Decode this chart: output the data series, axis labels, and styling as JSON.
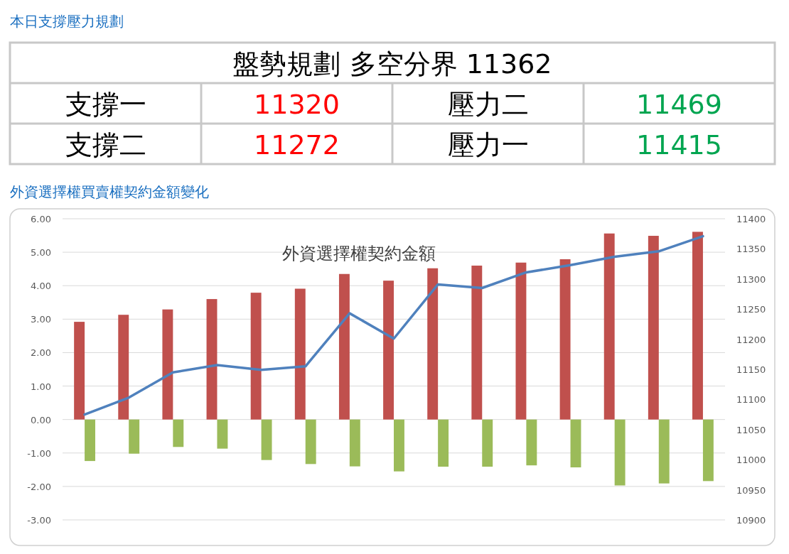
{
  "chart_data": [
    {
      "type": "other",
      "title": "本日支撐壓力規劃",
      "annotations": [
        "盤勢規劃 多空分界 11362",
        "支撐一",
        "11320",
        "壓力二",
        "11469",
        "支撐二",
        "11272",
        "壓力一",
        "11415"
      ],
      "colors": [
        "#000000",
        "#000000",
        "#ff0000",
        "#000000",
        "#00a550",
        "#000000",
        "#ff0000",
        "#000000",
        "#00a550"
      ]
    },
    {
      "type": "bar",
      "title": "外資選擇權買賣權契約金額變化",
      "subtitle": "外資選擇權契約金額",
      "categories": [
        null,
        null,
        null,
        null,
        null,
        null,
        null,
        null,
        null,
        null,
        null,
        null,
        null,
        null,
        null
      ],
      "series": [
        {
          "color": "#c0504d",
          "values": [
            2.92,
            3.13,
            3.29,
            3.6,
            3.79,
            3.91,
            4.35,
            4.15,
            4.52,
            4.6,
            4.69,
            4.79,
            5.56,
            5.49,
            5.61
          ]
        },
        {
          "color": "#9bbb59",
          "values": [
            -1.24,
            -1.02,
            -0.82,
            -0.87,
            -1.21,
            -1.33,
            -1.4,
            -1.55,
            -1.41,
            -1.41,
            -1.37,
            -1.43,
            -1.97,
            -1.91,
            -1.84
          ]
        },
        {
          "type": "line",
          "axis": "y2",
          "color": "#4f81bd",
          "marker": "none",
          "values": [
            11075,
            11103,
            11145,
            11157,
            11149,
            11155,
            11243,
            11201,
            11291,
            11285,
            11311,
            11323,
            11337,
            11346,
            11371
          ]
        }
      ],
      "ylim": [
        -3,
        6
      ],
      "yticks": [
        {
          "value": 6,
          "label": "6.00"
        },
        {
          "value": 5,
          "label": "5.00"
        },
        {
          "value": 4,
          "label": "4.00"
        },
        {
          "value": 3,
          "label": "3.00"
        },
        {
          "value": 2,
          "label": "2.00"
        },
        {
          "value": 1,
          "label": "1.00"
        },
        {
          "value": 0,
          "label": "0.00"
        },
        {
          "value": -1,
          "label": "-1.00"
        },
        {
          "value": -2,
          "label": "-2.00"
        },
        {
          "value": -3,
          "label": "-3.00"
        }
      ],
      "y2lim": [
        10900,
        11400
      ],
      "y2ticks": [
        11400,
        11350,
        11300,
        11250,
        11200,
        11150,
        11100,
        11050,
        11000,
        10950,
        10900
      ],
      "grid": "y"
    }
  ]
}
